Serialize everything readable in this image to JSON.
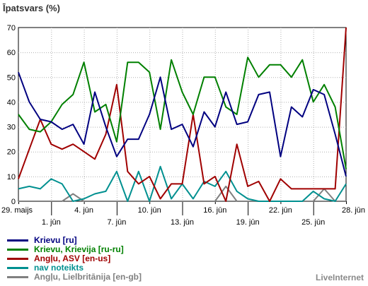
{
  "chart_data": {
    "type": "line",
    "title": "Īpatsvars (%)",
    "xlabel": "",
    "ylabel": "",
    "ylim": [
      0,
      70
    ],
    "yticks": [
      0,
      10,
      20,
      30,
      40,
      50,
      60,
      70
    ],
    "x": [
      "29. maijs",
      "30. maijs",
      "31. maijs",
      "1. jūn",
      "2. jūn",
      "3. jūn",
      "4. jūn",
      "5. jūn",
      "6. jūn",
      "7. jūn",
      "8. jūn",
      "9. jūn",
      "10. jūn",
      "11. jūn",
      "12. jūn",
      "13. jūn",
      "14. jūn",
      "15. jūn",
      "16. jūn",
      "17. jūn",
      "18. jūn",
      "19. jūn",
      "20. jūn",
      "21. jūn",
      "22. jūn",
      "23. jūn",
      "24. jūn",
      "25. jūn",
      "26. jūn",
      "27. jūn",
      "28. jūn"
    ],
    "tick_labels": [
      {
        "index": 0,
        "label": "29. maijs",
        "row": 1
      },
      {
        "index": 3,
        "label": "1. jūn",
        "row": 2
      },
      {
        "index": 6,
        "label": "4. jūn",
        "row": 1
      },
      {
        "index": 9,
        "label": "7. jūn",
        "row": 2
      },
      {
        "index": 12,
        "label": "10. jūn",
        "row": 1
      },
      {
        "index": 15,
        "label": "13. jūn",
        "row": 2
      },
      {
        "index": 18,
        "label": "16. jūn",
        "row": 1
      },
      {
        "index": 21,
        "label": "19. jūn",
        "row": 2
      },
      {
        "index": 24,
        "label": "22. jūn",
        "row": 1
      },
      {
        "index": 27,
        "label": "25. jūn",
        "row": 2
      },
      {
        "index": 30,
        "label": "28. jūn",
        "row": 1
      }
    ],
    "grid": true,
    "series": [
      {
        "name": "Krievu [ru]",
        "color": "#000080",
        "values": [
          52,
          40,
          33,
          32,
          29,
          31,
          23,
          44,
          30,
          18,
          25,
          25,
          35,
          50,
          29,
          31,
          22,
          36,
          30,
          44,
          31,
          32,
          43,
          44,
          18,
          38,
          34,
          45,
          43,
          27,
          10
        ]
      },
      {
        "name": "Krievu, Krievija [ru-ru]",
        "color": "#008000",
        "values": [
          35,
          29,
          28,
          32,
          39,
          43,
          56,
          36,
          39,
          24,
          56,
          56,
          52,
          29,
          57,
          44,
          35,
          50,
          50,
          38,
          35,
          58,
          50,
          55,
          55,
          50,
          57,
          40,
          47,
          38,
          13
        ]
      },
      {
        "name": "Angļu, ASV [en-us]",
        "color": "#a00000",
        "values": [
          9,
          21,
          33,
          23,
          21,
          23,
          20,
          17,
          27,
          47,
          12,
          7,
          10,
          1,
          7,
          7,
          35,
          7,
          10,
          0,
          23,
          6,
          8,
          0,
          9,
          5,
          5,
          5,
          5,
          5,
          70
        ]
      },
      {
        "name": "nav noteikts",
        "color": "#009090",
        "values": [
          5,
          6,
          5,
          9,
          7,
          0,
          1,
          3,
          4,
          12,
          0,
          12,
          0,
          14,
          1,
          7,
          1,
          8,
          6,
          12,
          4,
          1,
          0,
          0,
          0,
          0,
          0,
          4,
          1,
          0,
          7
        ]
      },
      {
        "name": "Angļu, Lielbritānija [en-gb]",
        "color": "#808080",
        "values": [
          0,
          0,
          0,
          0,
          0,
          3,
          0,
          0,
          0,
          0,
          0,
          0,
          0,
          0,
          0,
          0,
          0,
          0,
          0,
          6,
          0,
          0,
          0,
          0,
          0,
          0,
          0,
          0,
          5,
          0,
          0
        ]
      }
    ],
    "legend_placement": "bottom-left"
  },
  "brand": "LiveInternet"
}
